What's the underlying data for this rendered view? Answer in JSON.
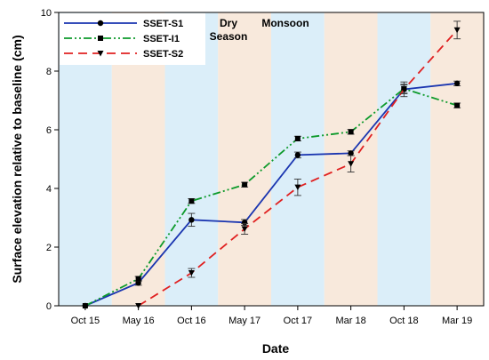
{
  "chart_data": {
    "type": "line",
    "xlabel": "Date",
    "ylabel": "Surface elevation relative to baseline (cm)",
    "ylim": [
      0,
      10
    ],
    "yticks": [
      0,
      2,
      4,
      6,
      8,
      10
    ],
    "categories": [
      "Oct 15",
      "May 16",
      "Oct 16",
      "May 17",
      "Oct 17",
      "Mar 18",
      "Oct 18",
      "Mar 19"
    ],
    "grid": false,
    "legend_position": "top-left",
    "season_bands": [
      {
        "from": -0.5,
        "to": 0.5,
        "type": "monsoon"
      },
      {
        "from": 0.5,
        "to": 1.5,
        "type": "dry"
      },
      {
        "from": 1.5,
        "to": 2.5,
        "type": "monsoon"
      },
      {
        "from": 2.5,
        "to": 3.5,
        "type": "dry"
      },
      {
        "from": 3.5,
        "to": 4.5,
        "type": "monsoon"
      },
      {
        "from": 4.5,
        "to": 5.5,
        "type": "dry"
      },
      {
        "from": 5.5,
        "to": 6.5,
        "type": "monsoon"
      },
      {
        "from": 6.5,
        "to": 7.5,
        "type": "dry"
      }
    ],
    "season_labels": {
      "dry_line1": "Dry",
      "dry_line2": "Season",
      "monsoon": "Monsoon"
    },
    "colors": {
      "monsoon": "#dbeef9",
      "dry": "#f8e9dc"
    },
    "series": [
      {
        "name": "SSET-S1",
        "color": "#1a35b0",
        "dash": "solid",
        "marker": "circle",
        "x": [
          0,
          1,
          2,
          3,
          4,
          5,
          6,
          7
        ],
        "values": [
          0,
          0.78,
          2.93,
          2.84,
          5.14,
          5.2,
          7.38,
          7.58
        ],
        "errors": [
          0,
          0.08,
          0.22,
          0.1,
          0.1,
          0.08,
          0.25,
          0.08
        ]
      },
      {
        "name": "SSET-I1",
        "color": "#0d9a2b",
        "dash": "dashdot",
        "marker": "square",
        "x": [
          0,
          1,
          2,
          3,
          4,
          5,
          6,
          7
        ],
        "values": [
          0,
          0.92,
          3.57,
          4.13,
          5.7,
          5.93,
          7.4,
          6.83
        ],
        "errors": [
          0,
          0.08,
          0.08,
          0.08,
          0.08,
          0.08,
          0.15,
          0.08
        ]
      },
      {
        "name": "SSET-S2",
        "color": "#e02020",
        "dash": "dashed",
        "marker": "triangle-down",
        "x": [
          1,
          2,
          3,
          4,
          5,
          6,
          7
        ],
        "values": [
          0,
          1.12,
          2.62,
          4.04,
          4.84,
          7.38,
          9.4
        ],
        "errors": [
          0,
          0.15,
          0.18,
          0.28,
          0.28,
          0.15,
          0.3
        ]
      }
    ]
  }
}
